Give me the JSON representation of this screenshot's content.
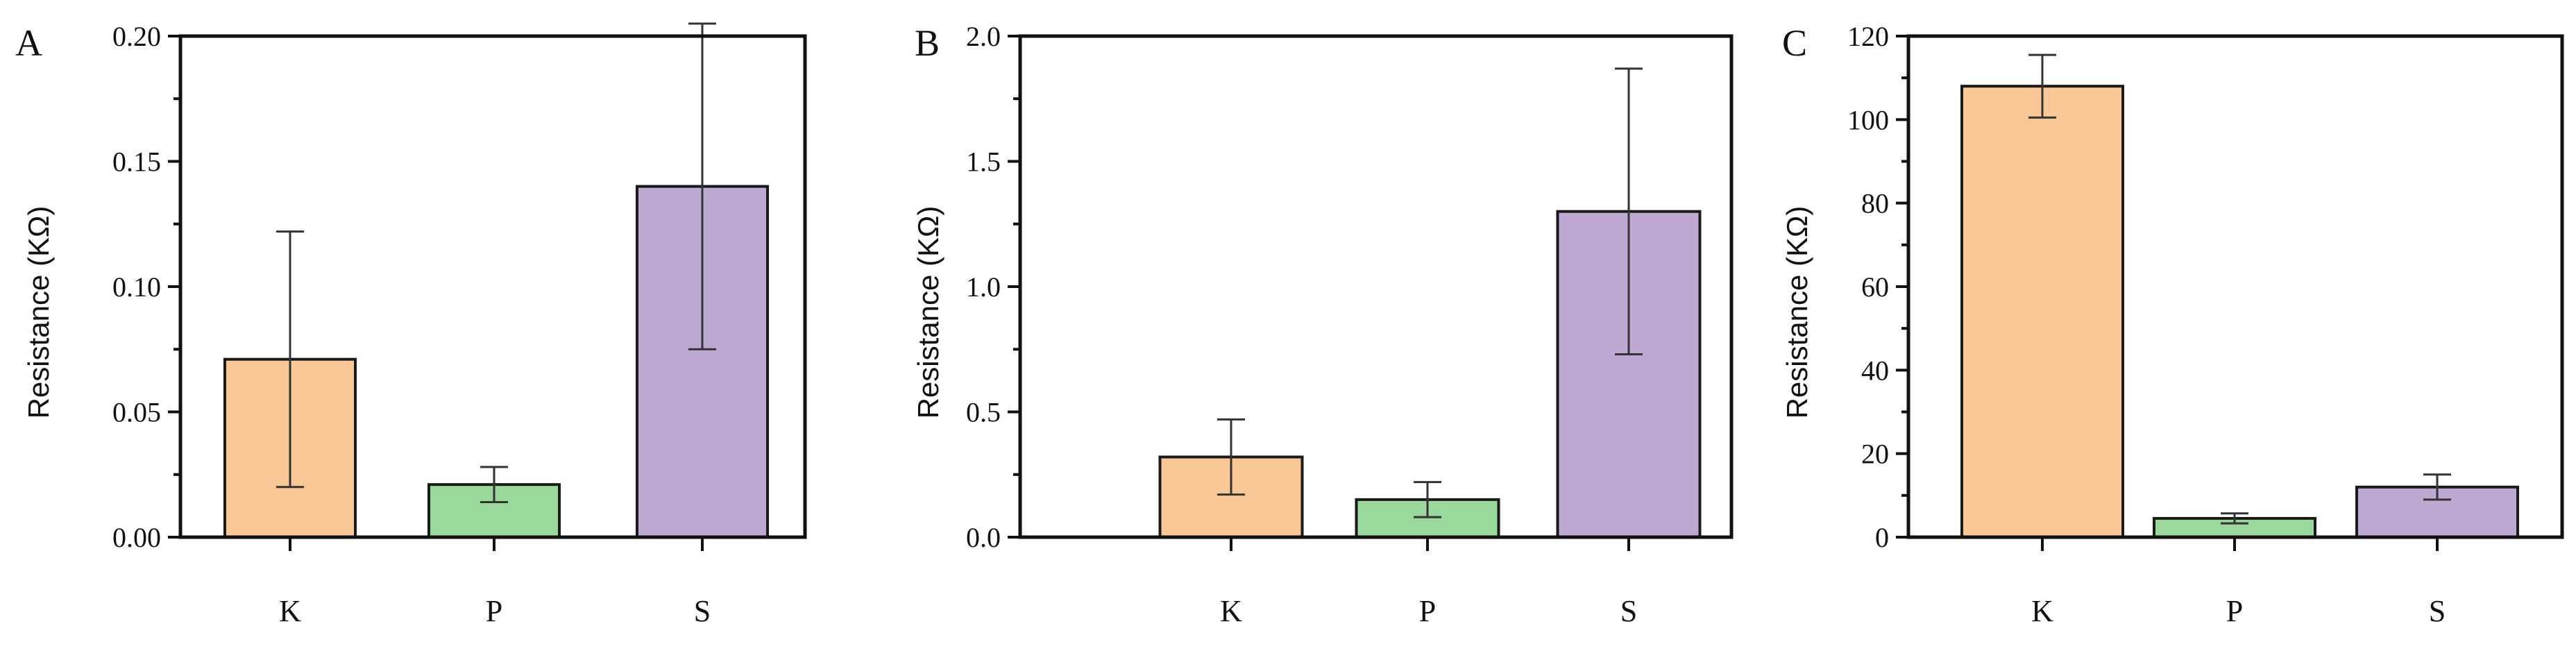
{
  "chart_data": [
    {
      "type": "bar",
      "panel_label": "A",
      "categories": [
        "K",
        "P",
        "S"
      ],
      "values": [
        0.071,
        0.021,
        0.14
      ],
      "errors": [
        0.051,
        0.007,
        0.065
      ],
      "colors": [
        "#FAC897",
        "#9BD89B",
        "#BEA9D3"
      ],
      "ylabel": "Resistance (KΩ)",
      "ylim": [
        0,
        0.2
      ],
      "yticks": [
        "0.00",
        "0.05",
        "0.10",
        "0.15",
        "0.20"
      ],
      "ytick_values": [
        0,
        0.05,
        0.1,
        0.15,
        0.2
      ],
      "grid": false,
      "legend": "none"
    },
    {
      "type": "bar",
      "panel_label": "B",
      "categories": [
        "K",
        "P",
        "S"
      ],
      "values": [
        0.32,
        0.15,
        1.3
      ],
      "errors": [
        0.15,
        0.07,
        0.57
      ],
      "colors": [
        "#FAC897",
        "#9BD89B",
        "#BEA9D3"
      ],
      "ylabel": "Resistance (KΩ)",
      "ylim": [
        0,
        2.0
      ],
      "yticks": [
        "0.0",
        "0.5",
        "1.0",
        "1.5",
        "2.0"
      ],
      "ytick_values": [
        0,
        0.5,
        1.0,
        1.5,
        2.0
      ],
      "grid": false,
      "legend": "none"
    },
    {
      "type": "bar",
      "panel_label": "C",
      "categories": [
        "K",
        "P",
        "S"
      ],
      "values": [
        108,
        4.5,
        12
      ],
      "errors": [
        7.5,
        1.2,
        3
      ],
      "colors": [
        "#FAC897",
        "#9BD89B",
        "#BEA9D3"
      ],
      "ylabel": "Resistance (KΩ)",
      "ylim": [
        0,
        120
      ],
      "yticks": [
        "0",
        "20",
        "40",
        "60",
        "80",
        "100",
        "120"
      ],
      "ytick_values": [
        0,
        20,
        40,
        60,
        80,
        100,
        120
      ],
      "grid": false,
      "legend": "none"
    }
  ]
}
